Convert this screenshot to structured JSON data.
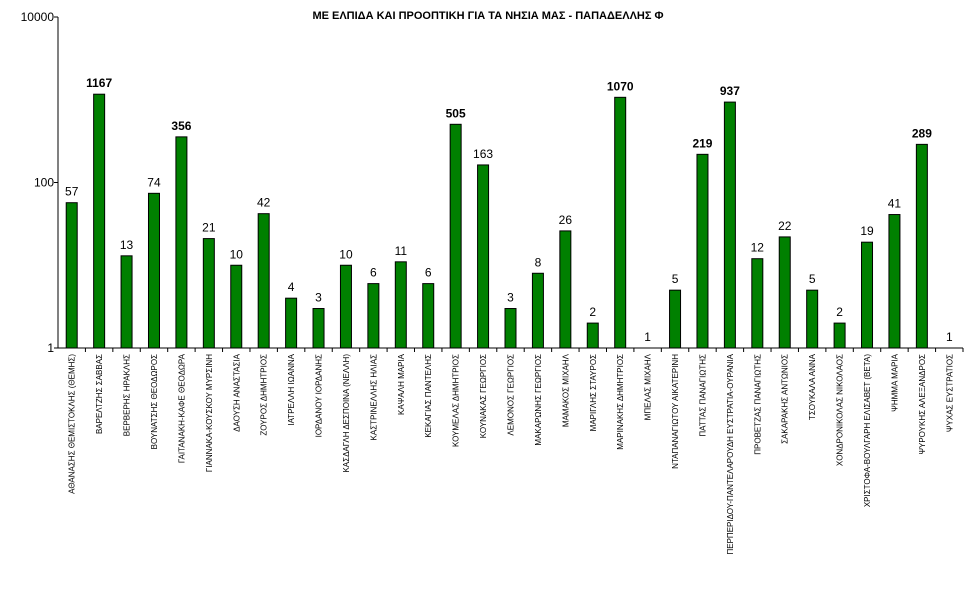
{
  "chart_data": {
    "type": "bar",
    "title": "ΜΕ ΕΛΠΙΔΑ ΚΑΙ ΠΡΟΟΠΤΙΚΗ ΓΙΑ ΤΑ ΝΗΣΙΑ ΜΑΣ - ΠΑΠΑΔΕΛΛΗΣ Φ",
    "xlabel": "",
    "ylabel": "",
    "yscale": "log",
    "ylim": [
      1,
      10000
    ],
    "yticks": [
      "1",
      "100",
      "10000"
    ],
    "grid": false,
    "legend": "none",
    "colors": {
      "bar": "#008000",
      "bar_outline": "#000000",
      "axis": "#000000"
    },
    "categories": [
      "ΑΘΑΝΑΣΗΣ ΘΕΜΙΣΤΟΚΛΗΣ (ΘΕΜΗΣ)",
      "ΒΑΡΕΛΤΖΗΣ ΣΑΒΒΑΣ",
      "ΒΕΡΒΕΡΗΣ ΗΡΑΚΛΗΣ",
      "ΒΟΥΝΑΤΣΗΣ ΘΕΟΔΩΡΟΣ",
      "ΓΑΙΤΑΝΑΚΗ-ΚΑΦΕ ΘΕΟΔΩΡΑ",
      "ΓΙΑΝΝΑΚΑ-ΚΟΥΣΚΟΥ ΜΥΡΣΙΝΗ",
      "ΔΑΟΥΣΗ ΑΝΑΣΤΑΣΙΑ",
      "ΖΟΥΡΟΣ ΔΗΜΗΤΡΙΟΣ",
      "ΙΑΤΡΕΛΛΗ ΙΩΑΝΝΑ",
      "ΙΟΡΔΑΝΟΥ ΙΟΡΔΑΝΗΣ",
      "ΚΑΣΔΑΓΛΗ ΔΕΣΠΟΙΝΑ (ΝΕΛΛΗ)",
      "ΚΑΣΤΡΙΝΕΛΛΗΣ ΗΛΙΑΣ",
      "ΚΑΨΑΛΗ ΜΑΡΙΑ",
      "ΚΕΚΑΓΙΑΣ ΠΑΝΤΕΛΗΣ",
      "ΚΟΥΜΕΛΑΣ ΔΗΜΗΤΡΙΟΣ",
      "ΚΟΥΝΑΚΑΣ ΓΕΩΡΓΙΟΣ",
      "ΛΕΜΟΝΟΣ ΓΕΩΡΓΙΟΣ",
      "ΜΑΚΑΡΩΝΗΣ ΓΕΩΡΓΙΟΣ",
      "ΜΑΜΑΚΟΣ ΜΙΧΑΗΛ",
      "ΜΑΡΙΓΛΗΣ ΣΤΑΥΡΟΣ",
      "ΜΑΡΙΝΑΚΗΣ ΔΗΜΗΤΡΙΟΣ",
      "ΜΠΕΛΑΣ ΜΙΧΑΗΛ",
      "ΝΤΑΠΑΝΑΓΙΩΤΟΥ ΑΙΚΑΤΕΡΙΝΗ",
      "ΠΑΤΤΑΣ ΠΑΝΑΓΙΩΤΗΣ",
      "ΠΕΡΠΕΡΙΔΟΥ-ΠΑΝΤΕΛΑΡΟΥΔΗ ΕΥΣΤΡΑΤΙΑ-ΟΥΡΑΝΙΑ",
      "ΠΡΟΒΕΤΖΑΣ ΠΑΝΑΓΙΩΤΗΣ",
      "ΣΑΚΑΡΑΚΗΣ ΑΝΤΩΝΙΟΣ",
      "ΤΣΟΥΚΑΛΑ ΑΝΝΑ",
      "ΧΟΝΔΡΟΝΙΚΟΛΑΣ ΝΙΚΟΛΑΟΣ",
      "ΧΡΙΣΤΟΦΑ-ΒΟΥΛΓΑΡΗ ΕΛΙΣΑΒΕΤ (ΒΕΤΑ)",
      "ΨΗΜΜΑ ΜΑΡΙΑ",
      "ΨΥΡΟΥΚΗΣ ΑΛΕΞΑΝΔΡΟΣ",
      "ΨΥΧΑΣ ΕΥΣΤΡΑΤΙΟΣ"
    ],
    "values": [
      57,
      1167,
      13,
      74,
      356,
      21,
      10,
      42,
      4,
      3,
      10,
      6,
      11,
      6,
      505,
      163,
      3,
      8,
      26,
      2,
      1070,
      1,
      5,
      219,
      937,
      12,
      22,
      5,
      2,
      19,
      41,
      289,
      1
    ],
    "bold_value_labels": [
      1167,
      356,
      505,
      1070,
      219,
      937,
      289
    ]
  }
}
